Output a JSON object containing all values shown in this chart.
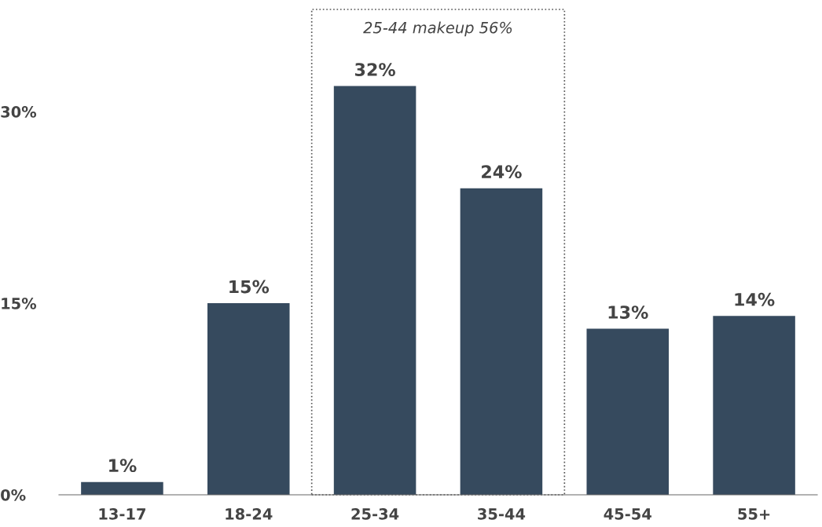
{
  "chart_data": {
    "type": "bar",
    "categories": [
      "13-17",
      "18-24",
      "25-34",
      "35-44",
      "45-54",
      "55+"
    ],
    "values": [
      1,
      15,
      32,
      24,
      13,
      14
    ],
    "value_labels": [
      "1%",
      "15%",
      "32%",
      "24%",
      "13%",
      "14%"
    ],
    "color": "#364a5e",
    "ylim": [
      0,
      38
    ],
    "yticks": [
      {
        "value": 0,
        "label": "0%"
      },
      {
        "value": 15,
        "label": "15%"
      },
      {
        "value": 30,
        "label": "30%"
      }
    ],
    "annotations": [
      "25-44 makeup 56%"
    ],
    "grid": false
  }
}
